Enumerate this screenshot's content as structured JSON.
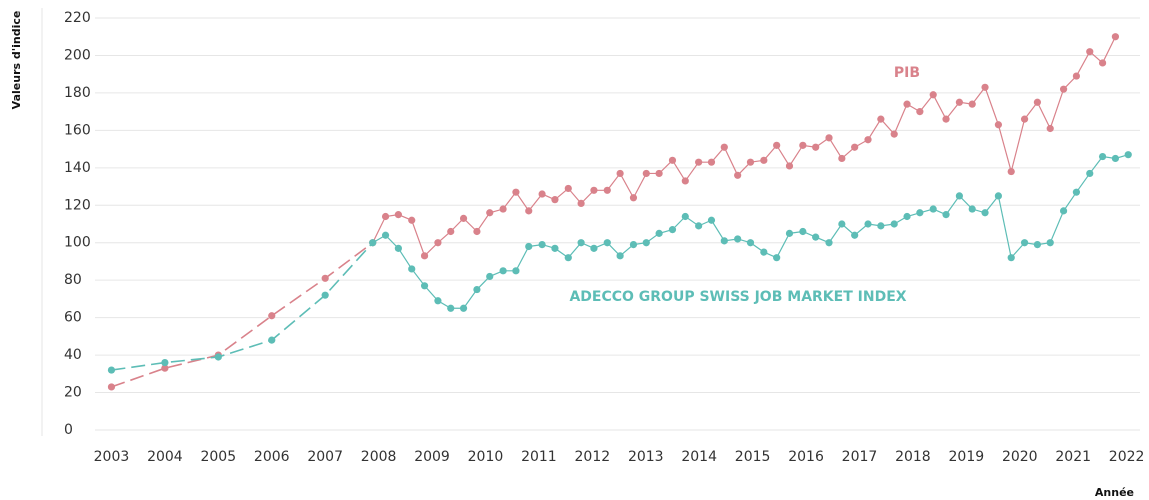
{
  "chart_data": {
    "type": "line",
    "ylabel": "Valeurs d'indice",
    "xlabel": "Année",
    "x": [
      2003,
      2004,
      2005,
      2006,
      2007,
      2007.89,
      2008.13,
      2008.37,
      2008.62,
      2008.86,
      2009.11,
      2009.35,
      2009.59,
      2009.84,
      2010.08,
      2010.33,
      2010.57,
      2010.81,
      2011.06,
      2011.3,
      2011.55,
      2011.79,
      2012.03,
      2012.28,
      2012.52,
      2012.77,
      2013.01,
      2013.25,
      2013.5,
      2013.74,
      2013.99,
      2014.23,
      2014.47,
      2014.72,
      2014.96,
      2015.21,
      2015.45,
      2015.69,
      2015.94,
      2016.18,
      2016.43,
      2016.67,
      2016.91,
      2017.16,
      2017.4,
      2017.65,
      2017.89,
      2018.13,
      2018.38,
      2018.62,
      2018.87,
      2019.11,
      2019.35,
      2019.6,
      2019.84,
      2020.09,
      2020.33,
      2020.57,
      2020.82,
      2021.06,
      2021.31,
      2021.55,
      2021.79,
      2022.03
    ],
    "series": [
      {
        "name": "PIB",
        "color": "#d9828b",
        "values": [
          23,
          33,
          40,
          61,
          81,
          100,
          114,
          115,
          112,
          93,
          100,
          106,
          113,
          106,
          116,
          118,
          127,
          117,
          126,
          123,
          129,
          121,
          128,
          128,
          137,
          124,
          137,
          137,
          144,
          133,
          143,
          143,
          151,
          136,
          143,
          144,
          152,
          141,
          152,
          151,
          156,
          145,
          151,
          155,
          166,
          158,
          174,
          170,
          179,
          166,
          175,
          174,
          183,
          163,
          138,
          166,
          175,
          161,
          182,
          189,
          202,
          196,
          210,
          null
        ]
      },
      {
        "name": "ADECCO GROUP SWISS JOB MARKET INDEX",
        "color": "#5dbdb6",
        "values": [
          32,
          36,
          39,
          48,
          72,
          100,
          104,
          97,
          86,
          77,
          69,
          65,
          65,
          75,
          82,
          85,
          85,
          98,
          99,
          97,
          92,
          100,
          97,
          100,
          93,
          99,
          100,
          105,
          107,
          114,
          109,
          112,
          101,
          102,
          100,
          95,
          92,
          105,
          106,
          103,
          100,
          110,
          104,
          110,
          109,
          110,
          114,
          116,
          118,
          115,
          125,
          118,
          116,
          125,
          92,
          100,
          99,
          100,
          117,
          127,
          137,
          146,
          145,
          147
        ]
      }
    ],
    "dashed_before": 2007.89,
    "xlim": [
      2001.7,
      2022.4
    ],
    "xticks": [
      2003,
      2004,
      2005,
      2006,
      2007,
      2008,
      2009,
      2010,
      2011,
      2012,
      2013,
      2014,
      2015,
      2016,
      2017,
      2018,
      2019,
      2020,
      2021,
      2022
    ],
    "ylim": [
      0,
      220
    ],
    "yticks": [
      0,
      20,
      40,
      60,
      80,
      100,
      120,
      140,
      160,
      180,
      200,
      220
    ],
    "grid": true
  }
}
